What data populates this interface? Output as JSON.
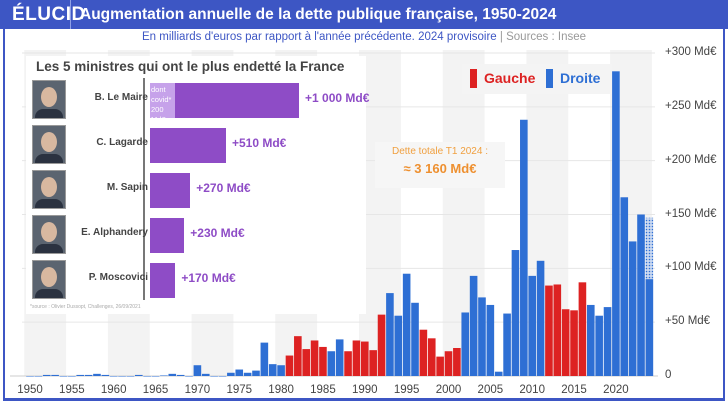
{
  "header": {
    "logo": "ÉLUCID",
    "title": "Augmentation annuelle de la dette publique française, 1950-2024"
  },
  "subtitle": {
    "text": "En milliards d'euros par rapport à l'année précédente. 2024 provisoire",
    "separator": "|",
    "sources": "Sources : Insee"
  },
  "colors": {
    "gauche": "#dd2222",
    "droite": "#2e6fd4",
    "ministers": "#8e4cc6",
    "covid": "#c6a2ea",
    "header": "#3d56c4",
    "annotation": "#ee9030"
  },
  "legend": {
    "gauche": "Gauche",
    "droite": "Droite"
  },
  "annotation": {
    "line1": "Dette totale T1 2024 :",
    "line2": "≈ 3 160 Md€"
  },
  "inset": {
    "title": "Les 5 ministres qui ont le plus endetté la France",
    "covid_label": "dont covid* 200 Md€",
    "covid_value": 200,
    "source": "*source : Olivier Dussopt, Challenges, 26/09/2021",
    "ministers": [
      {
        "name": "B. Le Maire",
        "value": 1000,
        "label": "+1 000 Md€"
      },
      {
        "name": "C. Lagarde",
        "value": 510,
        "label": "+510 Md€"
      },
      {
        "name": "M. Sapin",
        "value": 270,
        "label": "+270 Md€"
      },
      {
        "name": "E. Alphandery",
        "value": 230,
        "label": "+230 Md€"
      },
      {
        "name": "P. Moscovici",
        "value": 170,
        "label": "+170 Md€"
      }
    ]
  },
  "chart_data": {
    "type": "bar",
    "title": "Augmentation annuelle de la dette publique française, 1950-2024",
    "ylim": [
      0,
      300
    ],
    "yticks": [
      "0",
      "+50 Md€",
      "+100 Md€",
      "+150 Md€",
      "+200 Md€",
      "+250 Md€",
      "+300 Md€"
    ],
    "xticks": [
      "1950",
      "1955",
      "1960",
      "1965",
      "1970",
      "1975",
      "1980",
      "1985",
      "1990",
      "1995",
      "2000",
      "2005",
      "2010",
      "2015",
      "2020"
    ],
    "grid": true,
    "legend_position": "top-right",
    "x": [
      1950,
      1951,
      1952,
      1953,
      1954,
      1955,
      1956,
      1957,
      1958,
      1959,
      1960,
      1961,
      1962,
      1963,
      1964,
      1965,
      1966,
      1967,
      1968,
      1969,
      1970,
      1971,
      1972,
      1973,
      1974,
      1975,
      1976,
      1977,
      1978,
      1979,
      1980,
      1981,
      1982,
      1983,
      1984,
      1985,
      1986,
      1987,
      1988,
      1989,
      1990,
      1991,
      1992,
      1993,
      1994,
      1995,
      1996,
      1997,
      1998,
      1999,
      2000,
      2001,
      2002,
      2003,
      2004,
      2005,
      2006,
      2007,
      2008,
      2009,
      2010,
      2011,
      2012,
      2013,
      2014,
      2015,
      2016,
      2017,
      2018,
      2019,
      2020,
      2021,
      2022,
      2023,
      2024
    ],
    "values": [
      0,
      0,
      1,
      1,
      0,
      0,
      1,
      1,
      2,
      1,
      0,
      0,
      0,
      1,
      0,
      0,
      0.5,
      2,
      1,
      0,
      10,
      2,
      0,
      0,
      3,
      6,
      3,
      5,
      31,
      11,
      10,
      19,
      37,
      25,
      33,
      27,
      23,
      34,
      23,
      33,
      32,
      24,
      57,
      77,
      56,
      95,
      68,
      43,
      35,
      18,
      23,
      26,
      59,
      93,
      73,
      66,
      4,
      58,
      117,
      238,
      93,
      107,
      84,
      85,
      62,
      61,
      87,
      66,
      56,
      64,
      283,
      166,
      125,
      150,
      90
    ],
    "side": [
      "D",
      "D",
      "D",
      "D",
      "D",
      "D",
      "D",
      "D",
      "D",
      "D",
      "D",
      "D",
      "D",
      "D",
      "D",
      "D",
      "D",
      "D",
      "D",
      "D",
      "D",
      "D",
      "D",
      "D",
      "D",
      "D",
      "D",
      "D",
      "D",
      "D",
      "D",
      "G",
      "G",
      "G",
      "G",
      "G",
      "D",
      "D",
      "G",
      "G",
      "G",
      "G",
      "G",
      "D",
      "D",
      "D",
      "D",
      "G",
      "G",
      "G",
      "G",
      "G",
      "D",
      "D",
      "D",
      "D",
      "D",
      "D",
      "D",
      "D",
      "D",
      "D",
      "G",
      "G",
      "G",
      "G",
      "G",
      "D",
      "D",
      "D",
      "D",
      "D",
      "D",
      "D",
      "D"
    ],
    "provisional_2024_upper": 147
  }
}
